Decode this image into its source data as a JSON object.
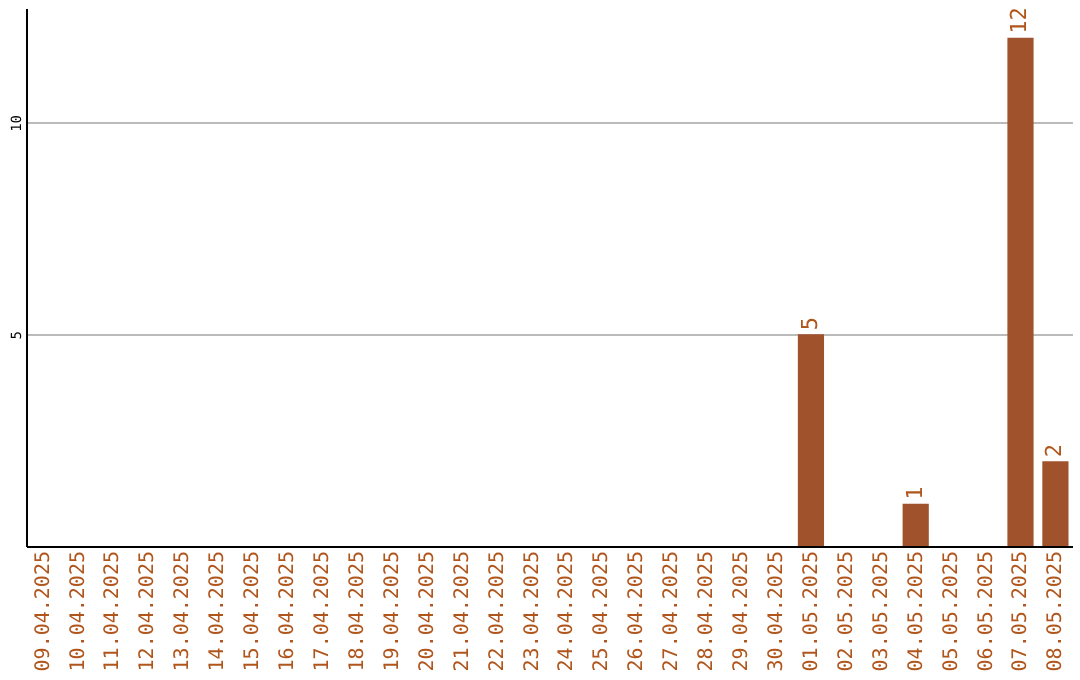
{
  "chart_data": {
    "type": "bar",
    "categories": [
      "09.04.2025",
      "10.04.2025",
      "11.04.2025",
      "12.04.2025",
      "13.04.2025",
      "14.04.2025",
      "15.04.2025",
      "16.04.2025",
      "17.04.2025",
      "18.04.2025",
      "19.04.2025",
      "20.04.2025",
      "21.04.2025",
      "22.04.2025",
      "23.04.2025",
      "24.04.2025",
      "25.04.2025",
      "26.04.2025",
      "27.04.2025",
      "28.04.2025",
      "29.04.2025",
      "30.04.2025",
      "01.05.2025",
      "02.05.2025",
      "03.05.2025",
      "04.05.2025",
      "05.05.2025",
      "06.05.2025",
      "07.05.2025",
      "08.05.2025"
    ],
    "values": [
      0,
      0,
      0,
      0,
      0,
      0,
      0,
      0,
      0,
      0,
      0,
      0,
      0,
      0,
      0,
      0,
      0,
      0,
      0,
      0,
      0,
      0,
      5,
      0,
      0,
      1,
      0,
      0,
      12,
      2
    ],
    "value_labels": [
      null,
      null,
      null,
      null,
      null,
      null,
      null,
      null,
      null,
      null,
      null,
      null,
      null,
      null,
      null,
      null,
      null,
      null,
      null,
      null,
      null,
      null,
      "5",
      null,
      null,
      "1",
      null,
      null,
      "12",
      "2"
    ],
    "color": "#a0522d",
    "ylim": [
      0,
      12.7
    ],
    "yticks": [
      5,
      10
    ],
    "grid": "y"
  }
}
